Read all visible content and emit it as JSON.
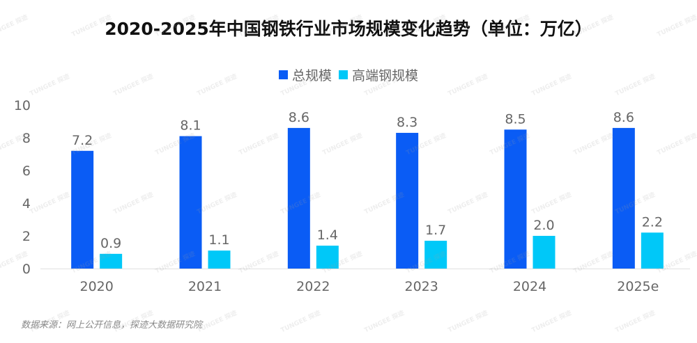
{
  "watermark": "TUNGEE 探迹",
  "source": "数据来源：网上公开信息，探迹大数据研究院",
  "chart_data": {
    "type": "bar",
    "title": "2020-2025年中国钢铁行业市场规模变化趋势（单位：万亿）",
    "xlabel": "",
    "ylabel": "",
    "categories": [
      "2020",
      "2021",
      "2022",
      "2023",
      "2024",
      "2025e"
    ],
    "series": [
      {
        "name": "总规模",
        "color": "#0a5cf5",
        "values": [
          7.2,
          8.1,
          8.6,
          8.3,
          8.5,
          8.6
        ],
        "labels": [
          "7.2",
          "8.1",
          "8.6",
          "8.3",
          "8.5",
          "8.6"
        ]
      },
      {
        "name": "高端钢规模",
        "color": "#00c8f8",
        "values": [
          0.9,
          1.1,
          1.4,
          1.7,
          2.0,
          2.2
        ],
        "labels": [
          "0.9",
          "1.1",
          "1.4",
          "1.7",
          "2.0",
          "2.2"
        ]
      }
    ],
    "ylim": [
      0,
      10
    ],
    "yticks": [
      "0",
      "2",
      "4",
      "6",
      "8",
      "10"
    ],
    "ytick_values": [
      0,
      2,
      4,
      6,
      8,
      10
    ],
    "grid": false,
    "legend": "top-center",
    "axis_color": "#e0e0e0",
    "label_color": "#666666"
  }
}
